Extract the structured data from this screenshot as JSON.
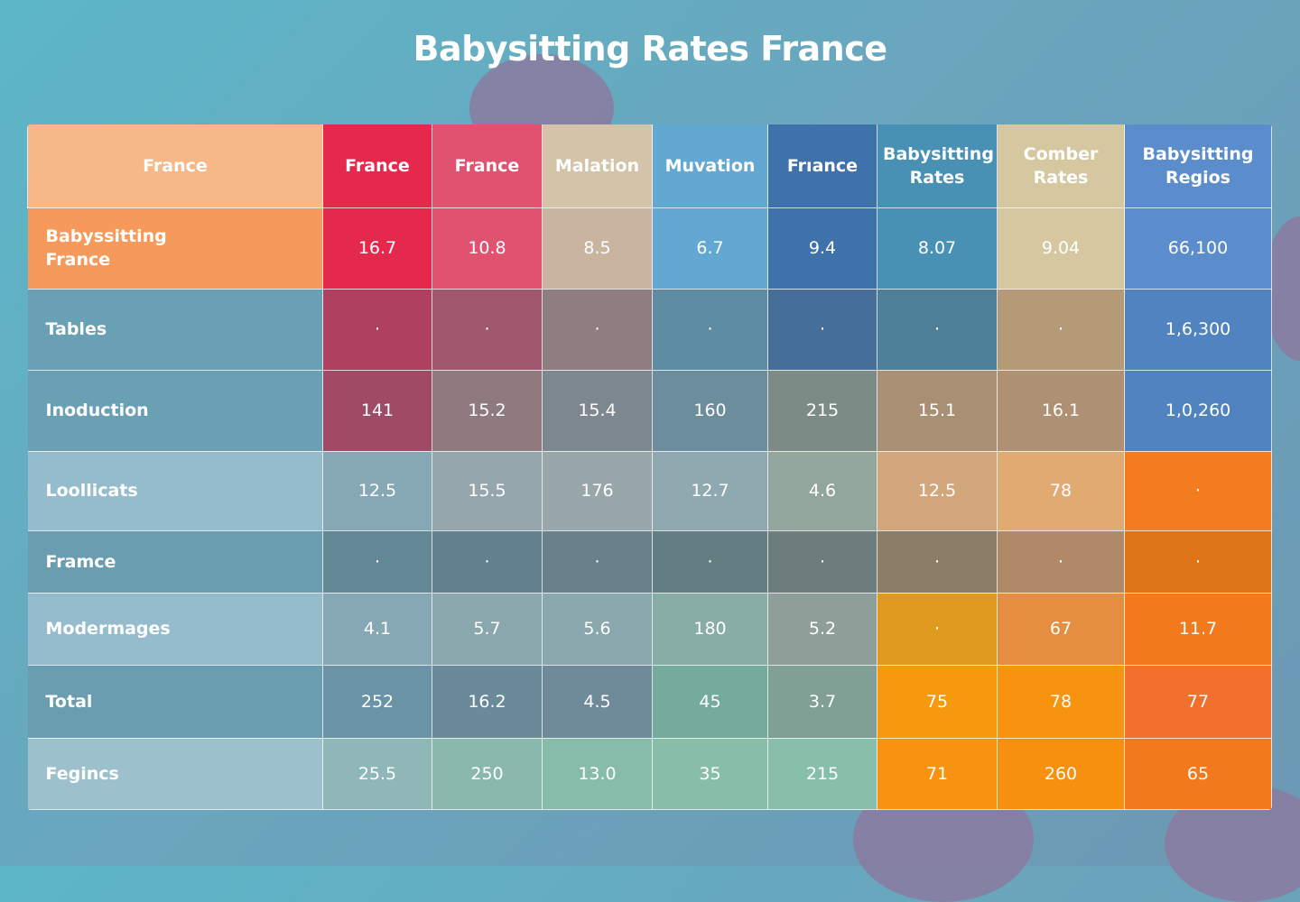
{
  "title": "Babysitting Rates France",
  "chart_data": {
    "type": "table",
    "title": "Babysitting Rates France",
    "columns": [
      "France",
      "France",
      "France",
      "Malation",
      "Muvation",
      "Frıance",
      "Babysitting Rates",
      "Comber Rates",
      "Babysitting Regios"
    ],
    "rows": [
      {
        "label": "Babyssitting France",
        "values": [
          "16.7",
          "10.8",
          "8.5",
          "6.7",
          "9.4",
          "8.07",
          "9.04",
          "66,100"
        ]
      },
      {
        "label": "Tables",
        "values": [
          "·",
          "·",
          "·",
          "·",
          "·",
          "·",
          "·",
          "1,6,300"
        ]
      },
      {
        "label": "Inoduction",
        "values": [
          "141",
          "15.2",
          "15.4",
          "160",
          "215",
          "15.1",
          "16.1",
          "1,0,260"
        ]
      },
      {
        "label": "Loollicats",
        "values": [
          "12.5",
          "15.5",
          "176",
          "12.7",
          "4.6",
          "12.5",
          "78",
          "·"
        ]
      },
      {
        "label": "Framce",
        "values": [
          "·",
          "·",
          "·",
          "·",
          "·",
          "·",
          "·",
          "·"
        ]
      },
      {
        "label": "Modermages",
        "values": [
          "4.1",
          "5.7",
          "5.6",
          "180",
          "5.2",
          "·",
          "67",
          "11.7"
        ]
      },
      {
        "label": "Total",
        "values": [
          "252",
          "16.2",
          "4.5",
          "45",
          "3.7",
          "75",
          "78",
          "77"
        ]
      },
      {
        "label": "Fegincs",
        "values": [
          "25.5",
          "250",
          "13.0",
          "35",
          "215",
          "71",
          "260",
          "65"
        ]
      }
    ]
  },
  "colors": {
    "background": "#5fb3c6",
    "blob": "#8a7aa0",
    "accent_red": "#e5294d",
    "accent_orange": "#f7930e",
    "accent_blue": "#3f72aa"
  }
}
